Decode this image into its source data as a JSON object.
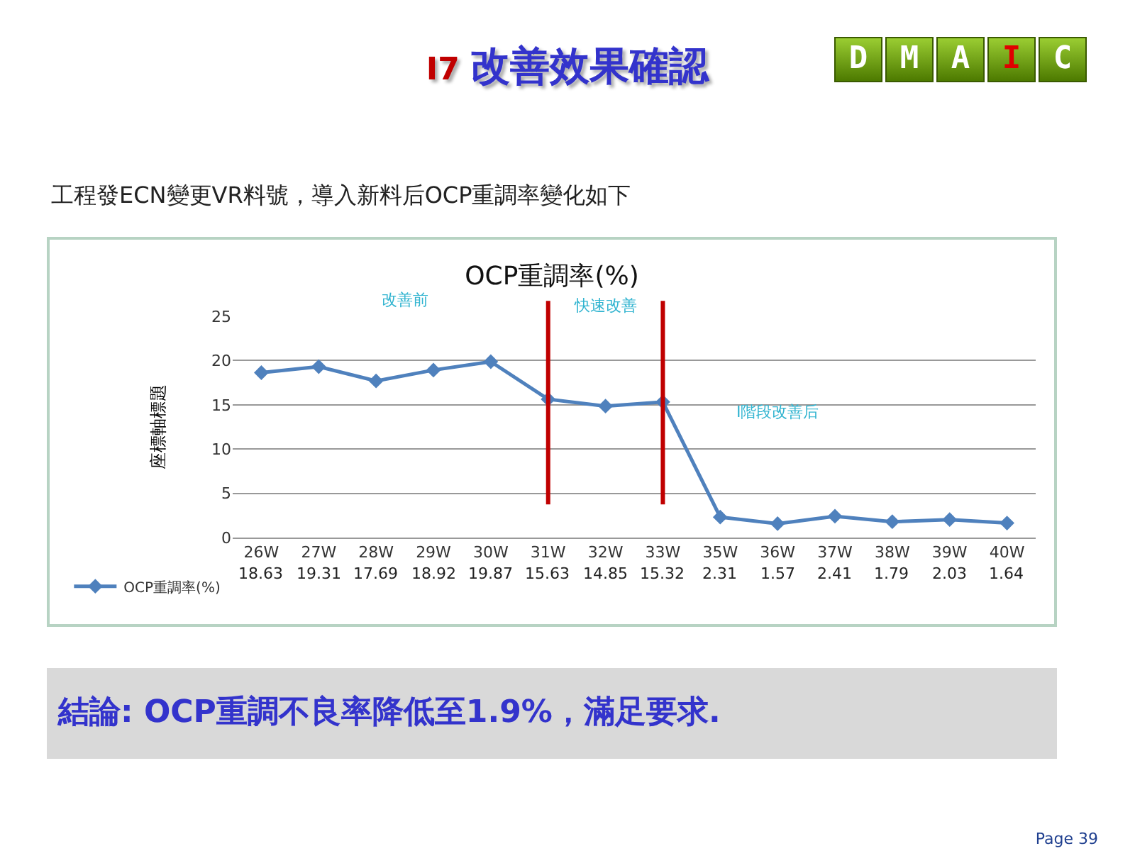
{
  "chart_data": {
    "type": "line",
    "title": "OCP重調率(%)",
    "subtitle": "工程發ECN變更VR料號，導入新料后OCP重調率變化如下",
    "ylabel": "座標軸標題",
    "categories": [
      "26W",
      "27W",
      "28W",
      "29W",
      "30W",
      "31W",
      "32W",
      "33W",
      "35W",
      "36W",
      "37W",
      "38W",
      "39W",
      "40W"
    ],
    "series": [
      {
        "name": "OCP重調率(%)",
        "color": "#4f81bd",
        "values": [
          18.63,
          19.31,
          17.69,
          18.92,
          19.87,
          15.63,
          14.85,
          15.32,
          2.31,
          1.57,
          2.41,
          1.79,
          2.03,
          1.64
        ]
      }
    ],
    "ylim": [
      0,
      25
    ],
    "yticks": [
      0,
      5,
      10,
      15,
      20,
      25
    ],
    "grid": "y",
    "marker": "diamond",
    "line_style": "solid",
    "data_labels": true,
    "legend": "bottom left",
    "ref_lines": [
      {
        "axis": "x",
        "value": "31W",
        "color": "#c00000"
      },
      {
        "axis": "x",
        "value": "33W",
        "color": "#c00000"
      }
    ],
    "annotations": [
      "改善前",
      "快速改善",
      "I階段改善后",
      "I7 改善效果確認",
      "D",
      "M",
      "A",
      "I",
      "C",
      "結論:  OCP重調不良率降低至1.9%，滿足要求.",
      "Page 39"
    ]
  }
}
